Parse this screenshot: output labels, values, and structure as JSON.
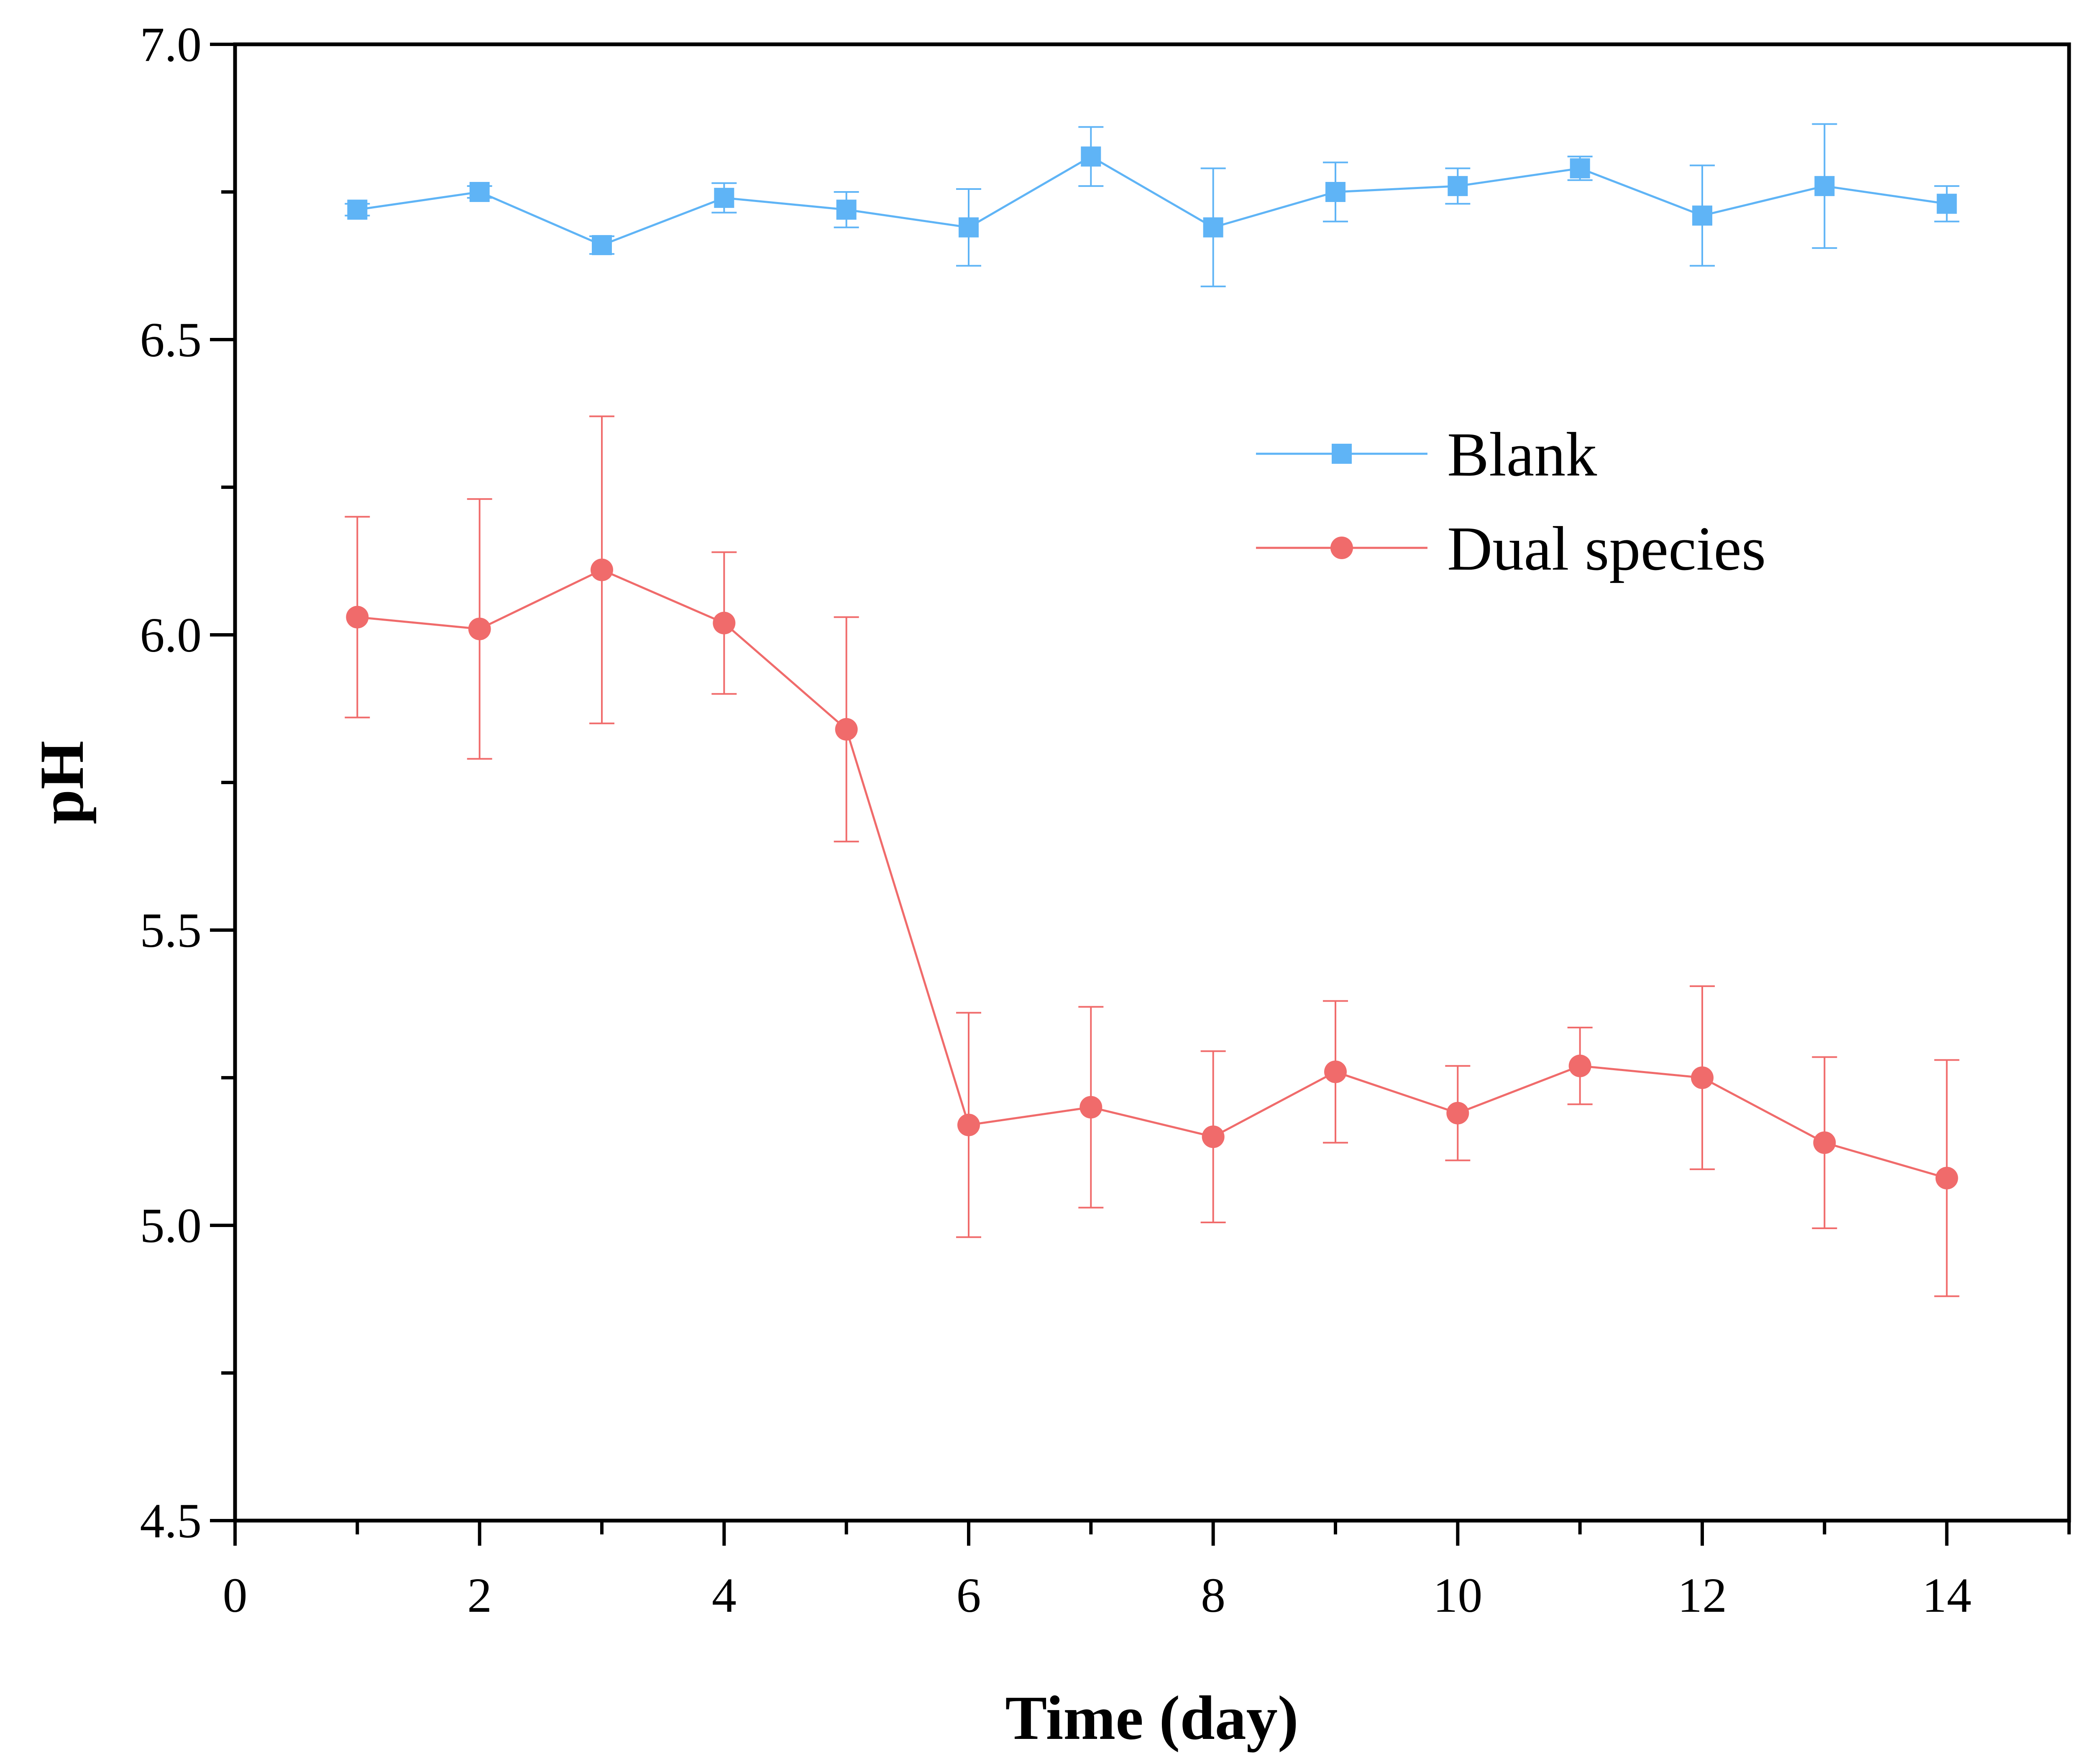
{
  "chart_data": {
    "type": "line",
    "xlabel": "Time (day)",
    "ylabel": "pH",
    "xlim": [
      0,
      15
    ],
    "ylim": [
      4.5,
      7.0
    ],
    "x_ticks": [
      0,
      2,
      4,
      6,
      8,
      10,
      12,
      14
    ],
    "x_tick_labels": [
      "0",
      "2",
      "4",
      "6",
      "8",
      "10",
      "12",
      "14"
    ],
    "y_ticks": [
      4.5,
      5.0,
      5.5,
      6.0,
      6.5,
      7.0
    ],
    "y_tick_labels": [
      "4.5",
      "5.0",
      "5.5",
      "6.0",
      "6.5",
      "7.0"
    ],
    "grid": false,
    "legend_position": "upper-right",
    "x": [
      1,
      2,
      3,
      4,
      5,
      6,
      7,
      8,
      9,
      10,
      11,
      12,
      13,
      14
    ],
    "series": [
      {
        "name": "Blank",
        "marker": "square",
        "color": "#5fb4f6",
        "values": [
          6.72,
          6.75,
          6.66,
          6.74,
          6.72,
          6.69,
          6.81,
          6.69,
          6.75,
          6.76,
          6.79,
          6.71,
          6.76,
          6.73
        ],
        "error": [
          0.01,
          0.01,
          0.015,
          0.025,
          0.03,
          0.065,
          0.05,
          0.1,
          0.05,
          0.03,
          0.02,
          0.085,
          0.105,
          0.03
        ]
      },
      {
        "name": "Dual species",
        "marker": "circle",
        "color": "#f06b6b",
        "values": [
          6.03,
          6.01,
          6.11,
          6.02,
          5.84,
          5.17,
          5.2,
          5.15,
          5.26,
          5.19,
          5.27,
          5.25,
          5.14,
          5.08
        ],
        "error": [
          0.17,
          0.22,
          0.26,
          0.12,
          0.19,
          0.19,
          0.17,
          0.145,
          0.12,
          0.08,
          0.065,
          0.155,
          0.145,
          0.2
        ]
      }
    ]
  }
}
